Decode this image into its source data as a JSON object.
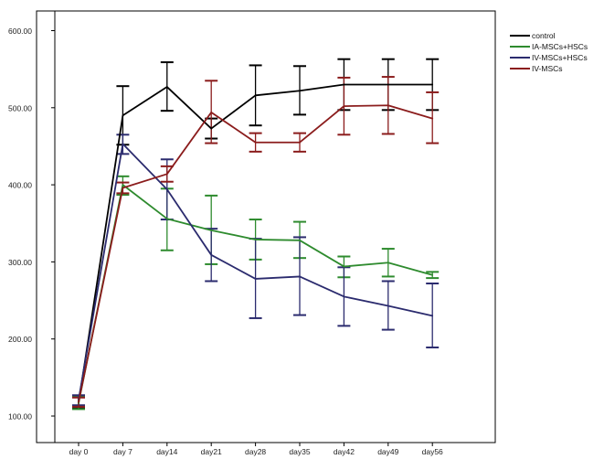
{
  "chart_data": {
    "type": "line",
    "categories": [
      "day 0",
      "day 7",
      "day14",
      "day21",
      "day28",
      "day35",
      "day42",
      "day49",
      "day56"
    ],
    "y_ticks": [
      "100.00",
      "200.00",
      "300.00",
      "400.00",
      "500.00",
      "600.00"
    ],
    "ylim": [
      100,
      620
    ],
    "grid": false,
    "legend_position": "top-right",
    "error_bars": true,
    "series": [
      {
        "name": "control",
        "color": "#000000",
        "values": [
          117,
          490,
          527,
          473,
          516,
          522,
          530,
          530,
          530
        ],
        "err_low": [
          110,
          452,
          496,
          460,
          477,
          491,
          497,
          497,
          497
        ],
        "err_high": [
          125,
          528,
          559,
          486,
          555,
          554,
          563,
          563,
          563
        ]
      },
      {
        "name": "IA-MSCs+HSCs",
        "color": "#2e8b2e",
        "values": [
          117,
          400,
          356,
          341,
          329,
          328,
          294,
          299,
          283
        ],
        "err_low": [
          109,
          387,
          315,
          297,
          303,
          305,
          280,
          281,
          279
        ],
        "err_high": [
          125,
          411,
          395,
          386,
          355,
          352,
          307,
          317,
          287
        ]
      },
      {
        "name": "IV-MSCs+HSCs",
        "color": "#2b2b6e",
        "values": [
          121,
          453,
          394,
          309,
          278,
          281,
          255,
          243,
          230
        ],
        "err_low": [
          114,
          440,
          355,
          275,
          227,
          231,
          217,
          212,
          189
        ],
        "err_high": [
          127,
          465,
          433,
          343,
          330,
          332,
          293,
          275,
          272
        ]
      },
      {
        "name": "IV-MSCs",
        "color": "#8b1c1c",
        "values": [
          118,
          396,
          414,
          494,
          455,
          455,
          502,
          503,
          486
        ],
        "err_low": [
          112,
          389,
          404,
          454,
          443,
          443,
          465,
          466,
          454
        ],
        "err_high": [
          124,
          403,
          424,
          535,
          467,
          467,
          539,
          540,
          520
        ]
      }
    ]
  }
}
